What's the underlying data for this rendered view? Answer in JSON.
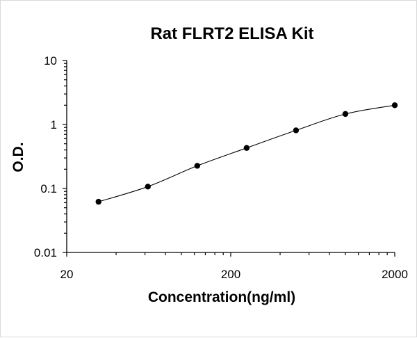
{
  "chart_data": {
    "type": "scatter",
    "title": "Rat FLRT2 ELISA Kit",
    "xlabel": "Concentration(ng/ml)",
    "ylabel": "O.D.",
    "x_scale": "log",
    "y_scale": "log",
    "xlim": [
      20,
      2000
    ],
    "ylim": [
      0.01,
      10
    ],
    "x_tick_labels": [
      "20",
      "200",
      "2000"
    ],
    "y_tick_labels": [
      "10",
      "1",
      "0.1",
      "0.01"
    ],
    "grid": false,
    "legend": "none",
    "fit_curve": true,
    "series": [
      {
        "x": [
          31.25,
          62.5,
          125,
          250,
          500,
          1000,
          2000
        ],
        "y": [
          0.062,
          0.107,
          0.226,
          0.43,
          0.81,
          1.46,
          2.0
        ]
      }
    ]
  }
}
